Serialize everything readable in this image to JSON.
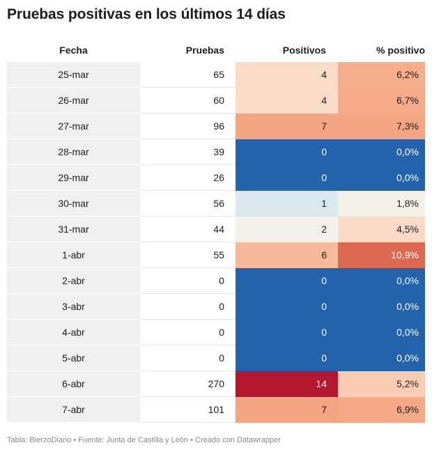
{
  "title": "Pruebas positivas en los últimos 14 días",
  "headers": {
    "fecha": "Fecha",
    "pruebas": "Pruebas",
    "positivos": "Positivos",
    "pct": "% positivo"
  },
  "chart_data": {
    "type": "table",
    "columns": [
      "Fecha",
      "Pruebas",
      "Positivos",
      "% positivo"
    ],
    "rows": [
      {
        "fecha": "25-mar",
        "pruebas": "65",
        "positivos": "4",
        "pct": "6,2%",
        "pos_color": "#fbdcc9",
        "pct_color": "#f6ae8d"
      },
      {
        "fecha": "26-mar",
        "pruebas": "60",
        "positivos": "4",
        "pct": "6,7%",
        "pos_color": "#fbdcc9",
        "pct_color": "#f5aa88"
      },
      {
        "fecha": "27-mar",
        "pruebas": "96",
        "positivos": "7",
        "pct": "7,3%",
        "pos_color": "#f4a683",
        "pct_color": "#f4a683"
      },
      {
        "fecha": "28-mar",
        "pruebas": "39",
        "positivos": "0",
        "pct": "0,0%",
        "pos_color": "#2263ab",
        "pct_color": "#2263ab"
      },
      {
        "fecha": "29-mar",
        "pruebas": "26",
        "positivos": "0",
        "pct": "0,0%",
        "pos_color": "#2263ab",
        "pct_color": "#2263ab"
      },
      {
        "fecha": "30-mar",
        "pruebas": "56",
        "positivos": "1",
        "pct": "1,8%",
        "pos_color": "#dbe8ee",
        "pct_color": "#f4f2e8"
      },
      {
        "fecha": "31-mar",
        "pruebas": "44",
        "positivos": "2",
        "pct": "4,5%",
        "pos_color": "#f4f2e8",
        "pct_color": "#fbdac6"
      },
      {
        "fecha": "1-abr",
        "pruebas": "55",
        "positivos": "6",
        "pct": "10,9%",
        "pos_color": "#f7b99b",
        "pct_color": "#db6a50"
      },
      {
        "fecha": "2-abr",
        "pruebas": "0",
        "positivos": "0",
        "pct": "0,0%",
        "pos_color": "#2263ab",
        "pct_color": "#2263ab"
      },
      {
        "fecha": "3-abr",
        "pruebas": "0",
        "positivos": "0",
        "pct": "0,0%",
        "pos_color": "#2263ab",
        "pct_color": "#2263ab"
      },
      {
        "fecha": "4-abr",
        "pruebas": "0",
        "positivos": "0",
        "pct": "0,0%",
        "pos_color": "#2263ab",
        "pct_color": "#2263ab"
      },
      {
        "fecha": "5-abr",
        "pruebas": "0",
        "positivos": "0",
        "pct": "0,0%",
        "pos_color": "#2263ab",
        "pct_color": "#2263ab"
      },
      {
        "fecha": "6-abr",
        "pruebas": "270",
        "positivos": "14",
        "pct": "5,2%",
        "pos_color": "#b3172d",
        "pct_color": "#fbcdb4"
      },
      {
        "fecha": "7-abr",
        "pruebas": "101",
        "positivos": "7",
        "pct": "6,9%",
        "pos_color": "#f4a683",
        "pct_color": "#f5a986"
      }
    ]
  },
  "footer": "Tabla: BierzoDiario • Fuente: Junta de Castilla y León • Creado con Datawrapper"
}
